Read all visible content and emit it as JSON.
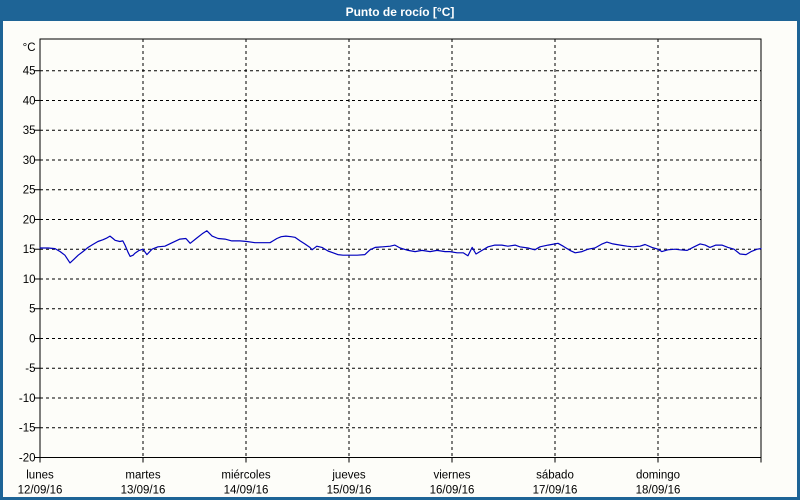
{
  "header": {
    "title": "Punto de rocío [°C]"
  },
  "colors": {
    "header_bg": "#1E6496",
    "border": "#1E6496",
    "background": "#FDFDF9",
    "line": "#0000BE",
    "grid": "#000000",
    "frame": "#000000",
    "title_text": "#FFFFFF",
    "axis_text": "#000000"
  },
  "chart_data": {
    "type": "line",
    "title": "Punto de rocío [°C]",
    "unit_label": "°C",
    "ylabel": "°C",
    "xlabel": "",
    "ylim": [
      -20,
      50
    ],
    "x_hours_total": 168,
    "grid": "dashed",
    "legend": "none",
    "y_ticks": [
      45,
      40,
      35,
      30,
      25,
      20,
      15,
      10,
      5,
      0,
      -5,
      -10,
      -15,
      -20
    ],
    "x_days": [
      {
        "name": "lunes",
        "date": "12/09/16"
      },
      {
        "name": "martes",
        "date": "13/09/16"
      },
      {
        "name": "miércoles",
        "date": "14/09/16"
      },
      {
        "name": "jueves",
        "date": "15/09/16"
      },
      {
        "name": "viernes",
        "date": "16/09/16"
      },
      {
        "name": "sábado",
        "date": "17/09/16"
      },
      {
        "name": "domingo",
        "date": "18/09/16"
      }
    ],
    "series": [
      {
        "name": "Punto de rocío",
        "color": "#0000BE",
        "points": [
          [
            0,
            15.2
          ],
          [
            1.9,
            15.2
          ],
          [
            3.5,
            15.1
          ],
          [
            4.7,
            14.6
          ],
          [
            5.8,
            14.0
          ],
          [
            7.0,
            12.7
          ],
          [
            7.9,
            13.3
          ],
          [
            8.9,
            14.0
          ],
          [
            10.0,
            14.6
          ],
          [
            11.2,
            15.3
          ],
          [
            12.3,
            15.8
          ],
          [
            13.5,
            16.3
          ],
          [
            14.7,
            16.6
          ],
          [
            15.6,
            16.9
          ],
          [
            16.3,
            17.2
          ],
          [
            17.0,
            16.8
          ],
          [
            17.5,
            16.5
          ],
          [
            18.6,
            16.3
          ],
          [
            19.3,
            16.4
          ],
          [
            19.8,
            15.7
          ],
          [
            20.5,
            14.5
          ],
          [
            21.0,
            13.8
          ],
          [
            21.7,
            14.0
          ],
          [
            22.1,
            14.3
          ],
          [
            23.1,
            14.8
          ],
          [
            24.0,
            15.0
          ],
          [
            24.9,
            14.1
          ],
          [
            26.1,
            15.0
          ],
          [
            27.5,
            15.4
          ],
          [
            29.1,
            15.5
          ],
          [
            30.8,
            16.1
          ],
          [
            32.6,
            16.7
          ],
          [
            34.0,
            16.8
          ],
          [
            35.0,
            16.0
          ],
          [
            36.4,
            16.8
          ],
          [
            37.8,
            17.6
          ],
          [
            38.9,
            18.1
          ],
          [
            40.1,
            17.2
          ],
          [
            41.5,
            16.8
          ],
          [
            43.1,
            16.7
          ],
          [
            44.7,
            16.4
          ],
          [
            46.6,
            16.4
          ],
          [
            48.2,
            16.3
          ],
          [
            50.1,
            16.1
          ],
          [
            51.7,
            16.1
          ],
          [
            53.6,
            16.1
          ],
          [
            54.3,
            16.4
          ],
          [
            55.2,
            16.8
          ],
          [
            56.2,
            17.1
          ],
          [
            57.3,
            17.2
          ],
          [
            58.5,
            17.1
          ],
          [
            59.4,
            17.0
          ],
          [
            60.6,
            16.4
          ],
          [
            61.7,
            15.9
          ],
          [
            62.9,
            15.3
          ],
          [
            63.4,
            14.9
          ],
          [
            64.5,
            15.5
          ],
          [
            65.7,
            15.3
          ],
          [
            67.1,
            14.7
          ],
          [
            68.3,
            14.4
          ],
          [
            69.4,
            14.1
          ],
          [
            70.6,
            14.0
          ],
          [
            72.2,
            14.0
          ],
          [
            73.9,
            14.0
          ],
          [
            75.7,
            14.1
          ],
          [
            76.9,
            14.9
          ],
          [
            78.1,
            15.3
          ],
          [
            79.9,
            15.4
          ],
          [
            81.6,
            15.5
          ],
          [
            82.7,
            15.7
          ],
          [
            83.9,
            15.2
          ],
          [
            85.8,
            14.8
          ],
          [
            87.4,
            14.6
          ],
          [
            89.0,
            14.8
          ],
          [
            90.9,
            14.6
          ],
          [
            92.5,
            14.8
          ],
          [
            94.4,
            14.6
          ],
          [
            95.5,
            14.6
          ],
          [
            97.2,
            14.4
          ],
          [
            98.6,
            14.4
          ],
          [
            99.7,
            13.9
          ],
          [
            100.7,
            15.3
          ],
          [
            101.6,
            14.2
          ],
          [
            103.0,
            14.8
          ],
          [
            104.4,
            15.4
          ],
          [
            106.0,
            15.7
          ],
          [
            107.6,
            15.7
          ],
          [
            109.0,
            15.5
          ],
          [
            110.7,
            15.7
          ],
          [
            111.8,
            15.4
          ],
          [
            113.7,
            15.2
          ],
          [
            115.3,
            14.9
          ],
          [
            116.5,
            15.4
          ],
          [
            118.4,
            15.7
          ],
          [
            120.0,
            15.9
          ],
          [
            120.7,
            16.0
          ],
          [
            121.9,
            15.5
          ],
          [
            123.5,
            14.8
          ],
          [
            124.7,
            14.4
          ],
          [
            126.3,
            14.6
          ],
          [
            127.7,
            15.0
          ],
          [
            129.3,
            15.2
          ],
          [
            131.0,
            15.9
          ],
          [
            132.1,
            16.2
          ],
          [
            133.5,
            15.9
          ],
          [
            135.2,
            15.7
          ],
          [
            136.8,
            15.5
          ],
          [
            138.2,
            15.4
          ],
          [
            139.8,
            15.5
          ],
          [
            141.0,
            15.8
          ],
          [
            142.6,
            15.3
          ],
          [
            144.0,
            15.0
          ],
          [
            144.9,
            14.6
          ],
          [
            146.3,
            14.9
          ],
          [
            148.0,
            15.0
          ],
          [
            149.1,
            14.9
          ],
          [
            150.8,
            14.8
          ],
          [
            152.4,
            15.4
          ],
          [
            153.8,
            15.9
          ],
          [
            155.0,
            15.7
          ],
          [
            156.1,
            15.3
          ],
          [
            157.5,
            15.7
          ],
          [
            158.9,
            15.7
          ],
          [
            160.3,
            15.3
          ],
          [
            161.7,
            15.0
          ],
          [
            163.1,
            14.2
          ],
          [
            164.5,
            14.1
          ],
          [
            165.7,
            14.6
          ],
          [
            167.1,
            15.0
          ],
          [
            168.0,
            15.1
          ]
        ]
      }
    ]
  }
}
